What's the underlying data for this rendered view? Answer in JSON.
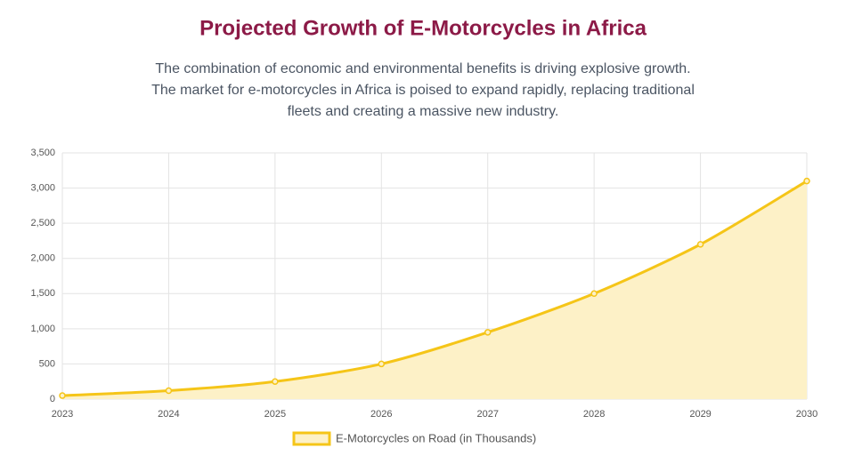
{
  "chart_data": {
    "type": "area",
    "title": "Projected Growth of E-Motorcycles in Africa",
    "subtitle": [
      "The combination of economic and environmental benefits is driving explosive growth.",
      "The market for e-motorcycles in Africa is poised to expand rapidly, replacing traditional",
      "fleets and creating a massive new industry."
    ],
    "categories": [
      "2023",
      "2024",
      "2025",
      "2026",
      "2027",
      "2028",
      "2029",
      "2030"
    ],
    "series": [
      {
        "name": "E-Motorcycles on Road (in Thousands)",
        "color": "#f5c518",
        "fill": "#fdf1c7",
        "values": [
          50,
          120,
          250,
          500,
          950,
          1500,
          2200,
          3100
        ]
      }
    ],
    "ylim": [
      0,
      3500
    ],
    "yticks": [
      0,
      500,
      {
        "value": 1000,
        "label": "1,000"
      },
      {
        "value": 1500,
        "label": "1,500"
      },
      {
        "value": 2000,
        "label": "2,000"
      },
      {
        "value": 2500,
        "label": "2,500"
      },
      {
        "value": 3000,
        "label": "3,000"
      },
      {
        "value": 3500,
        "label": "3,500"
      }
    ],
    "grid": true,
    "legend": "bottom"
  }
}
